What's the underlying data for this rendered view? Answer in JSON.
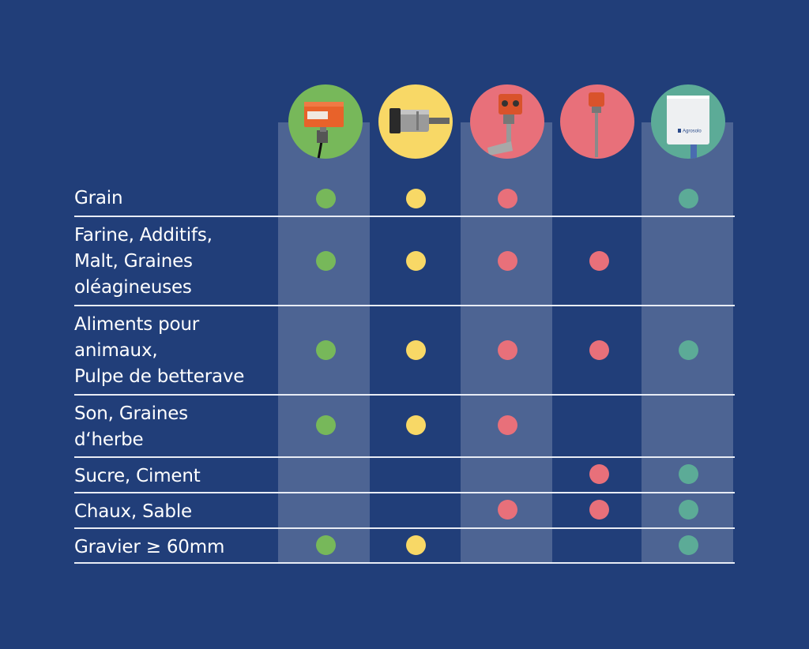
{
  "colors": {
    "background": "#213e79",
    "green": "#77b85a",
    "yellow": "#f8d866",
    "red": "#e8707a",
    "teal": "#5cab97"
  },
  "products": [
    {
      "icon": "orange-switch-box-icon",
      "color": "#77b85a"
    },
    {
      "icon": "cylindrical-sensor-icon",
      "color": "#f8d866"
    },
    {
      "icon": "paddle-sensor-icon",
      "color": "#e8707a"
    },
    {
      "icon": "rod-probe-sensor-icon",
      "color": "#e8707a"
    },
    {
      "icon": "white-control-box-icon",
      "color": "#5cab97",
      "brand": "Agrosolo"
    }
  ],
  "rows": [
    {
      "label": "Grain",
      "dots": [
        true,
        true,
        true,
        false,
        true
      ]
    },
    {
      "label": "Farine, Additifs,\nMalt, Graines\noléagineuses",
      "dots": [
        true,
        true,
        true,
        true,
        false
      ]
    },
    {
      "label": "Aliments pour\nanimaux,\nPulpe de betterave",
      "dots": [
        true,
        true,
        true,
        true,
        true
      ]
    },
    {
      "label": "Son, Graines\nd‘herbe",
      "dots": [
        true,
        true,
        true,
        false,
        false
      ]
    },
    {
      "label": "Sucre, Ciment",
      "dots": [
        false,
        false,
        false,
        true,
        true
      ]
    },
    {
      "label": "Chaux, Sable",
      "dots": [
        false,
        false,
        true,
        true,
        true
      ]
    },
    {
      "label": "Gravier ≥ 60mm",
      "dots": [
        true,
        true,
        false,
        false,
        true
      ]
    }
  ]
}
